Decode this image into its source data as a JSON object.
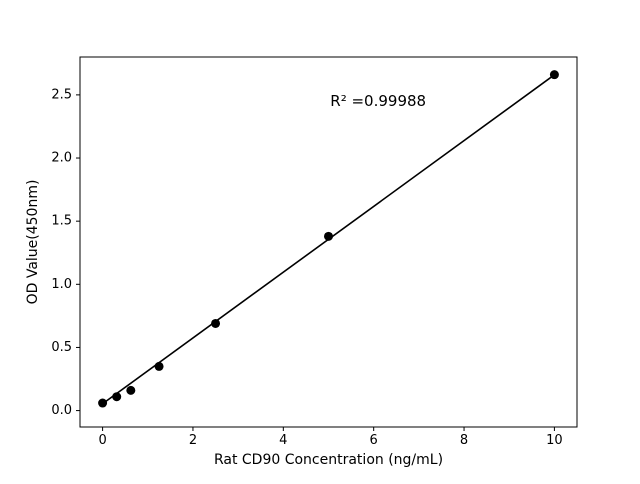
{
  "figure": {
    "background": "#ffffff"
  },
  "chart_data": {
    "type": "scatter",
    "title": "",
    "xlabel": "Rat CD90 Concentration (ng/mL)",
    "ylabel": "OD Value(450nm)",
    "annotation": {
      "text": "R² =0.99988",
      "x": 6.1,
      "y": 2.45
    },
    "x": [
      0,
      0.3125,
      0.625,
      1.25,
      2.5,
      5,
      10
    ],
    "y": [
      0.06,
      0.11,
      0.16,
      0.35,
      0.69,
      1.38,
      2.66
    ],
    "fit_line": {
      "x": [
        0,
        10
      ],
      "y": [
        0.054,
        2.659
      ]
    },
    "xlim": [
      -0.5,
      10.5
    ],
    "ylim": [
      -0.13,
      2.8
    ],
    "xticks": [
      0,
      2,
      4,
      6,
      8,
      10
    ],
    "xtick_labels": [
      "0",
      "2",
      "4",
      "6",
      "8",
      "10"
    ],
    "yticks": [
      0,
      0.5,
      1,
      1.5,
      2,
      2.5
    ],
    "ytick_labels": [
      "0.0",
      "0.5",
      "1.0",
      "1.5",
      "2.0",
      "2.5"
    ],
    "grid": false,
    "legend": null,
    "marker_color": "#000000",
    "line_color": "#000000",
    "spine_color": "#000000",
    "background_color": "#ffffff"
  }
}
